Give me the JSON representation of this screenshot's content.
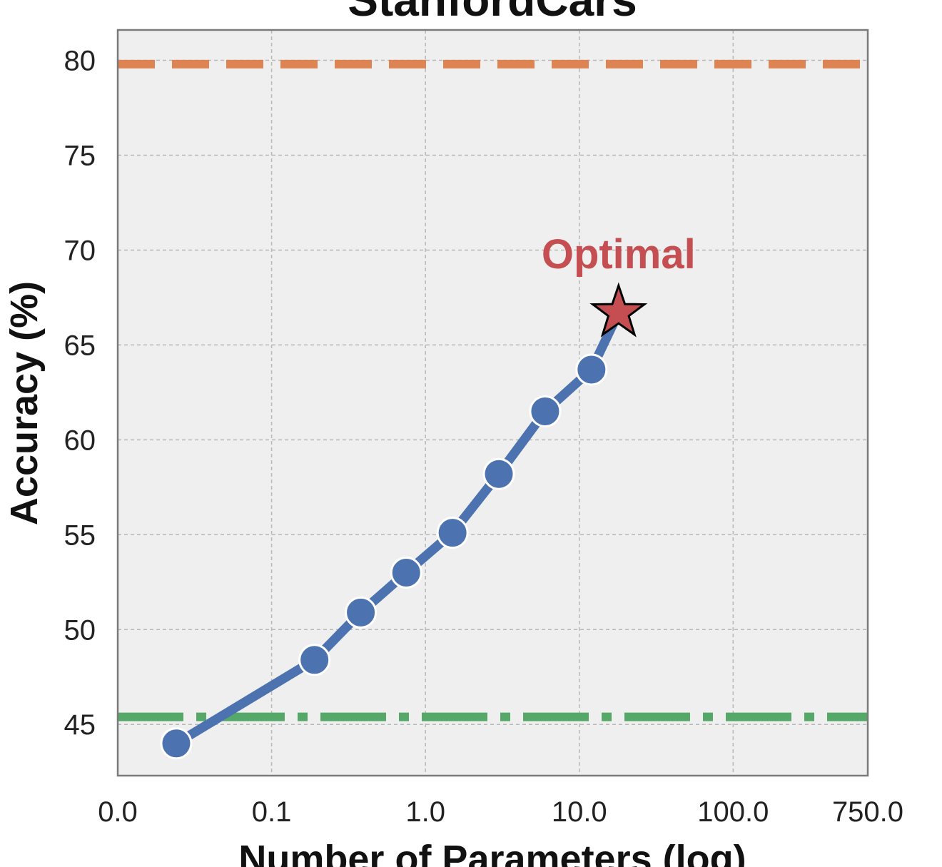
{
  "chart_data": {
    "type": "line",
    "title": "StanfordCars",
    "xlabel": "Number of Parameters (log)",
    "ylabel": "Accuracy (%)",
    "x_scale": "log",
    "x_ticks": [
      {
        "value": 0.01,
        "label": "0.0"
      },
      {
        "value": 0.1,
        "label": "0.1"
      },
      {
        "value": 1.0,
        "label": "1.0"
      },
      {
        "value": 10.0,
        "label": "10.0"
      },
      {
        "value": 100.0,
        "label": "100.0"
      },
      {
        "value": 750.0,
        "label": "750.0"
      }
    ],
    "y_ticks": [
      45,
      50,
      55,
      60,
      65,
      70,
      75,
      80
    ],
    "xlim": [
      0.01,
      750
    ],
    "ylim": [
      42.3,
      81.6
    ],
    "grid": true,
    "series": [
      {
        "x": [
          0.024,
          0.19,
          0.38,
          0.75,
          1.5,
          3.0,
          6.0,
          12.0,
          18.0
        ],
        "y": [
          44.0,
          48.4,
          50.9,
          53.0,
          55.1,
          58.2,
          61.5,
          63.7,
          66.7
        ],
        "color": "#4c72b0"
      }
    ],
    "reference_lines": [
      {
        "y": 79.8,
        "color": "#dd8452",
        "style": "dashed"
      },
      {
        "y": 45.4,
        "color": "#55a868",
        "style": "dashdot"
      }
    ],
    "annotations": [
      {
        "text": "Optimal",
        "x": 18.0,
        "y": 66.7,
        "marker": "star",
        "color": "#c44e52"
      }
    ]
  }
}
